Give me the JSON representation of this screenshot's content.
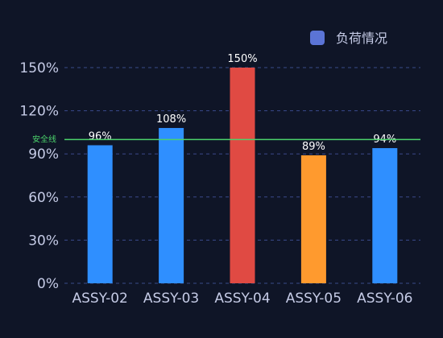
{
  "chart_data": {
    "type": "bar",
    "categories": [
      "ASSY-02",
      "ASSY-03",
      "ASSY-04",
      "ASSY-05",
      "ASSY-06"
    ],
    "series": [
      {
        "name": "负荷情况",
        "values": [
          96,
          108,
          150,
          89,
          94
        ],
        "labels": [
          "96%",
          "108%",
          "150%",
          "89%",
          "94%"
        ],
        "colors": [
          "#2f8fff",
          "#2f8fff",
          "#e04a43",
          "#ff9a2e",
          "#2f8fff"
        ]
      }
    ],
    "ylim": [
      0,
      150
    ],
    "yticks": [
      0,
      30,
      60,
      90,
      120,
      150
    ],
    "ytick_labels": [
      "0%",
      "30%",
      "60%",
      "90%",
      "120%",
      "150%"
    ],
    "threshold": {
      "label": "安全线",
      "value": 100,
      "color": "#4bd26b"
    },
    "grid": true,
    "legend": {
      "position": "top-right",
      "color": "#5b74d6"
    }
  }
}
